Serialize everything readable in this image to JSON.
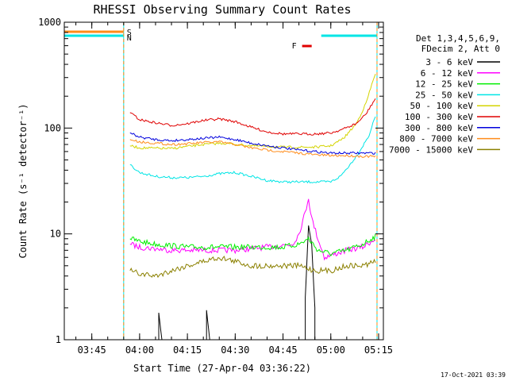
{
  "chart_data": {
    "type": "line",
    "title": "RHESSI Observing Summary Count Rates",
    "xlabel": "Start Time (27-Apr-04 03:36:22)",
    "ylabel": "Count Rate (s⁻¹ detector⁻¹)",
    "y_scale": "log",
    "ylim": [
      1,
      1000
    ],
    "xlim": [
      "03:36:22",
      "05:16:30"
    ],
    "x_ticks": [
      "03:45",
      "04:00",
      "04:15",
      "04:30",
      "04:45",
      "05:00",
      "05:15"
    ],
    "y_ticks": [
      "1",
      "10",
      "100",
      "1000"
    ],
    "legend_header": [
      "Det 1,3,4,5,6,9,",
      "FDecim 2, Att 0"
    ],
    "legend_position": "top-right",
    "footer_date": "17-Oct-2021 03:39",
    "annotations": {
      "saa_label": "S",
      "night_label": "N",
      "flare_label": "F",
      "saa_color": "#ff8c1a",
      "night_color": "#00e5e5",
      "flare_color": "#e00000"
    },
    "intervals": {
      "saa": [
        [
          "03:36:22",
          "03:55:00"
        ]
      ],
      "night": [
        [
          "03:36:22",
          "03:55:00"
        ],
        [
          "04:57:00",
          "05:14:30"
        ]
      ],
      "flare": [
        [
          "04:51:00",
          "04:54:00"
        ]
      ]
    },
    "series": [
      {
        "name": "3 - 6 keV",
        "color": "#000000",
        "points": [
          [
            "04:06",
            1
          ],
          [
            "04:06",
            1.8
          ],
          [
            "04:07",
            1
          ],
          [
            "04:21",
            1
          ],
          [
            "04:21",
            1.9
          ],
          [
            "04:22",
            1
          ],
          [
            "04:52",
            1
          ],
          [
            "04:52",
            2.5
          ],
          [
            "04:53",
            12
          ],
          [
            "04:54",
            8
          ],
          [
            "04:55",
            2
          ],
          [
            "04:55",
            1
          ]
        ]
      },
      {
        "name": "6 - 12 keV",
        "color": "#ff00ff",
        "points": [
          [
            "03:57",
            8
          ],
          [
            "04:00",
            7.5
          ],
          [
            "04:10",
            7
          ],
          [
            "04:20",
            7
          ],
          [
            "04:30",
            7
          ],
          [
            "04:40",
            7.5
          ],
          [
            "04:48",
            8
          ],
          [
            "04:50",
            10
          ],
          [
            "04:52",
            16
          ],
          [
            "04:53",
            22
          ],
          [
            "04:54",
            14
          ],
          [
            "04:56",
            9
          ],
          [
            "04:58",
            6
          ],
          [
            "05:05",
            7
          ],
          [
            "05:10",
            7.5
          ],
          [
            "05:14",
            9
          ]
        ]
      },
      {
        "name": "12 - 25 keV",
        "color": "#00ee00",
        "points": [
          [
            "03:57",
            9
          ],
          [
            "04:00",
            8.5
          ],
          [
            "04:05",
            8
          ],
          [
            "04:15",
            7.5
          ],
          [
            "04:25",
            7.5
          ],
          [
            "04:35",
            7.5
          ],
          [
            "04:45",
            7.5
          ],
          [
            "04:50",
            8
          ],
          [
            "04:53",
            9
          ],
          [
            "04:56",
            7
          ],
          [
            "05:00",
            6.5
          ],
          [
            "05:05",
            7
          ],
          [
            "05:10",
            8
          ],
          [
            "05:14",
            9.5
          ]
        ]
      },
      {
        "name": "25 - 50 keV",
        "color": "#00e5e5",
        "points": [
          [
            "03:57",
            45
          ],
          [
            "04:00",
            38
          ],
          [
            "04:05",
            35
          ],
          [
            "04:10",
            34
          ],
          [
            "04:15",
            34
          ],
          [
            "04:20",
            35
          ],
          [
            "04:25",
            37
          ],
          [
            "04:30",
            38
          ],
          [
            "04:35",
            35
          ],
          [
            "04:40",
            32
          ],
          [
            "04:45",
            31
          ],
          [
            "04:50",
            31
          ],
          [
            "04:55",
            31
          ],
          [
            "05:00",
            31
          ],
          [
            "05:03",
            35
          ],
          [
            "05:06",
            45
          ],
          [
            "05:09",
            60
          ],
          [
            "05:12",
            85
          ],
          [
            "05:14",
            130
          ]
        ]
      },
      {
        "name": "50 - 100 keV",
        "color": "#d4d400",
        "points": [
          [
            "03:57",
            68
          ],
          [
            "04:00",
            65
          ],
          [
            "04:10",
            64
          ],
          [
            "04:20",
            70
          ],
          [
            "04:26",
            72
          ],
          [
            "04:35",
            68
          ],
          [
            "04:45",
            66
          ],
          [
            "04:50",
            66
          ],
          [
            "04:55",
            66
          ],
          [
            "05:00",
            68
          ],
          [
            "05:04",
            80
          ],
          [
            "05:08",
            110
          ],
          [
            "05:11",
            170
          ],
          [
            "05:14",
            330
          ]
        ]
      },
      {
        "name": "100 - 300 keV",
        "color": "#e00000",
        "points": [
          [
            "03:57",
            140
          ],
          [
            "04:00",
            120
          ],
          [
            "04:05",
            112
          ],
          [
            "04:10",
            106
          ],
          [
            "04:15",
            110
          ],
          [
            "04:20",
            118
          ],
          [
            "04:25",
            122
          ],
          [
            "04:30",
            115
          ],
          [
            "04:35",
            102
          ],
          [
            "04:40",
            92
          ],
          [
            "04:45",
            88
          ],
          [
            "04:50",
            88
          ],
          [
            "04:55",
            88
          ],
          [
            "05:00",
            90
          ],
          [
            "05:04",
            98
          ],
          [
            "05:08",
            110
          ],
          [
            "05:11",
            135
          ],
          [
            "05:14",
            190
          ]
        ]
      },
      {
        "name": "300 - 800 keV",
        "color": "#0000dd",
        "points": [
          [
            "03:57",
            90
          ],
          [
            "04:00",
            82
          ],
          [
            "04:05",
            78
          ],
          [
            "04:10",
            76
          ],
          [
            "04:15",
            78
          ],
          [
            "04:20",
            80
          ],
          [
            "04:25",
            82
          ],
          [
            "04:30",
            78
          ],
          [
            "04:35",
            72
          ],
          [
            "04:40",
            68
          ],
          [
            "04:45",
            65
          ],
          [
            "04:50",
            62
          ],
          [
            "04:55",
            60
          ],
          [
            "05:00",
            58
          ],
          [
            "05:05",
            58
          ],
          [
            "05:10",
            58
          ],
          [
            "05:14",
            58
          ]
        ]
      },
      {
        "name": "800 - 7000 keV",
        "color": "#ff8c1a",
        "points": [
          [
            "03:57",
            78
          ],
          [
            "04:00",
            74
          ],
          [
            "04:05",
            72
          ],
          [
            "04:10",
            70
          ],
          [
            "04:15",
            71
          ],
          [
            "04:20",
            73
          ],
          [
            "04:25",
            74
          ],
          [
            "04:30",
            70
          ],
          [
            "04:35",
            65
          ],
          [
            "04:40",
            62
          ],
          [
            "04:45",
            60
          ],
          [
            "04:50",
            58
          ],
          [
            "04:55",
            56
          ],
          [
            "05:00",
            55
          ],
          [
            "05:05",
            55
          ],
          [
            "05:10",
            54
          ],
          [
            "05:14",
            54
          ]
        ]
      },
      {
        "name": "7000 - 15000 keV",
        "color": "#8b8000",
        "points": [
          [
            "03:57",
            4.5
          ],
          [
            "04:00",
            4.2
          ],
          [
            "04:05",
            4
          ],
          [
            "04:10",
            4.5
          ],
          [
            "04:15",
            5
          ],
          [
            "04:20",
            5.5
          ],
          [
            "04:25",
            6
          ],
          [
            "04:30",
            5.5
          ],
          [
            "04:35",
            5
          ],
          [
            "04:40",
            5
          ],
          [
            "04:45",
            5
          ],
          [
            "04:50",
            5
          ],
          [
            "04:55",
            4.5
          ],
          [
            "05:00",
            4.5
          ],
          [
            "05:05",
            5
          ],
          [
            "05:10",
            5
          ],
          [
            "05:14",
            5.5
          ]
        ]
      }
    ]
  }
}
